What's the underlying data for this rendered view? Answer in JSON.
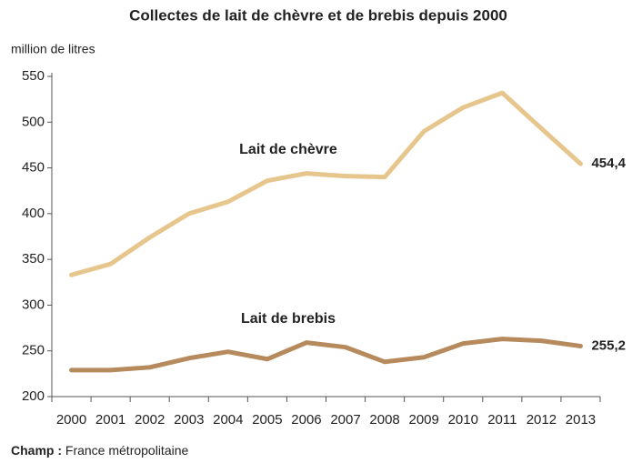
{
  "chart_data": {
    "type": "line",
    "title": "Collectes de lait de chèvre et de brebis depuis 2000",
    "y_label": "million de litres",
    "categories": [
      "2000",
      "2001",
      "2002",
      "2003",
      "2004",
      "2005",
      "2006",
      "2007",
      "2008",
      "2009",
      "2010",
      "2011",
      "2012",
      "2013"
    ],
    "series": [
      {
        "name": "Lait de chèvre",
        "color": "#e6c68c",
        "values": [
          333,
          345,
          374,
          400,
          413,
          436,
          444,
          441,
          440,
          490,
          516,
          532,
          493,
          454.4
        ],
        "value_labels": [
          null,
          null,
          null,
          null,
          null,
          null,
          null,
          null,
          null,
          null,
          null,
          null,
          null,
          "454,4"
        ]
      },
      {
        "name": "Lait de brebis",
        "color": "#b68a5c",
        "values": [
          229,
          229,
          232,
          242,
          249,
          241,
          259,
          254,
          238,
          243,
          258,
          263,
          261,
          255.2
        ],
        "value_labels": [
          null,
          null,
          null,
          null,
          null,
          null,
          null,
          null,
          null,
          null,
          null,
          null,
          null,
          "255,2"
        ]
      }
    ],
    "ylim": [
      200,
      550
    ],
    "yticks": [
      200,
      250,
      300,
      350,
      400,
      450,
      500,
      550
    ],
    "grid": false,
    "note": {
      "label": "Champ :",
      "text": "France métropolitaine"
    }
  }
}
